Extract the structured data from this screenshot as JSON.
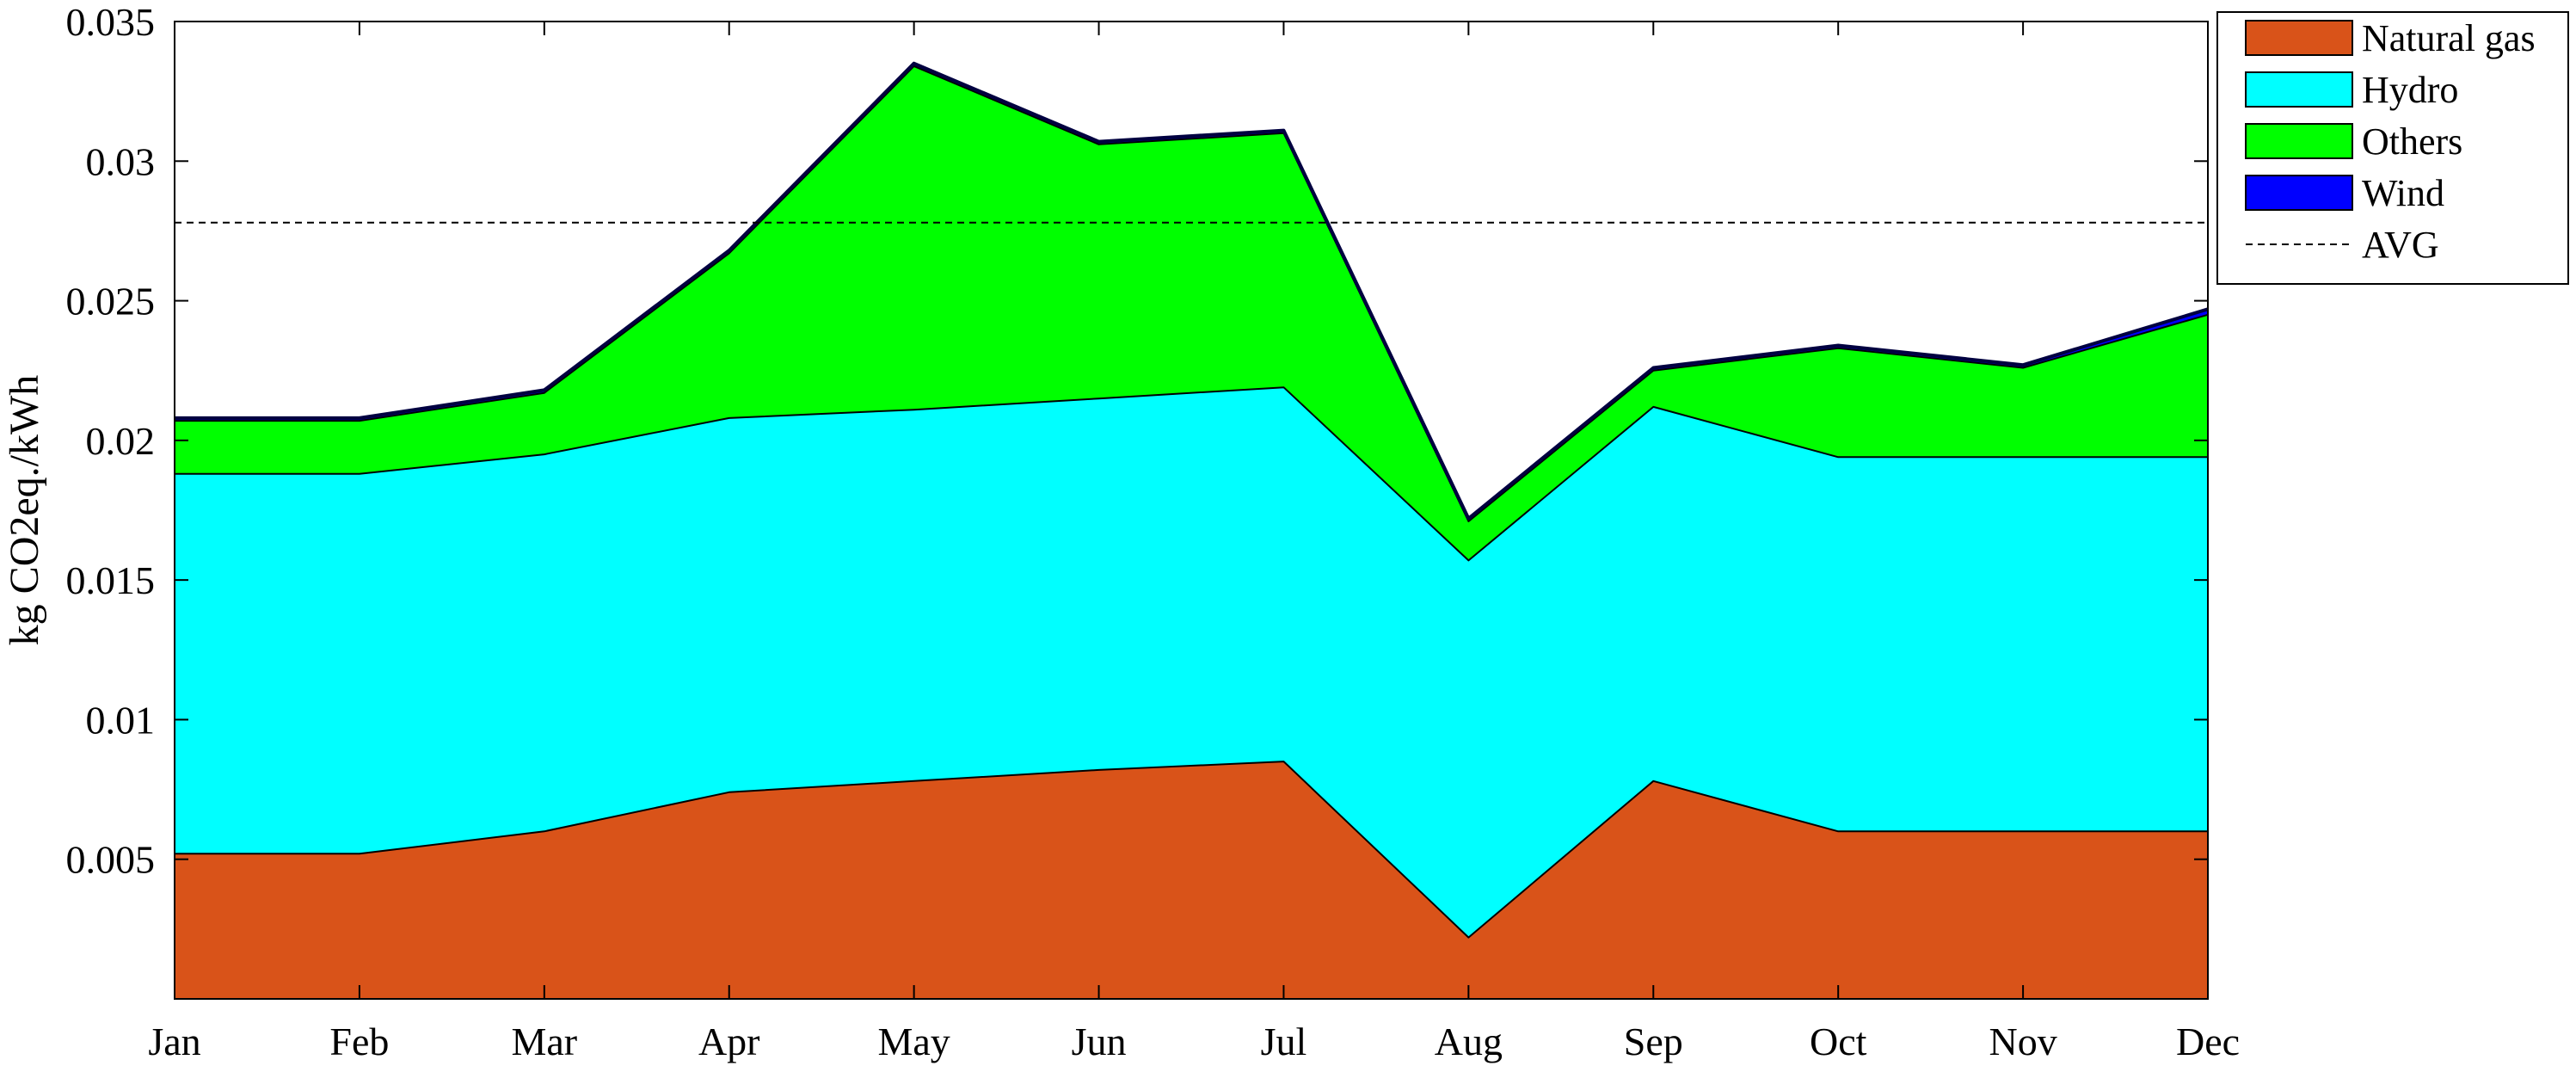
{
  "chart_data": {
    "type": "area",
    "stacked": true,
    "title": "",
    "xlabel": "",
    "ylabel": "kg CO2eq./kWh",
    "categories": [
      "Jan",
      "Feb",
      "Mar",
      "Apr",
      "May",
      "Jun",
      "Jul",
      "Aug",
      "Sep",
      "Oct",
      "Nov",
      "Dec"
    ],
    "ylim": [
      0,
      0.035
    ],
    "yticks": [
      0.005,
      0.01,
      0.015,
      0.02,
      0.025,
      0.03,
      0.035
    ],
    "ytick_labels": [
      "0.005",
      "0.01",
      "0.015",
      "0.02",
      "0.025",
      "0.03",
      "0.035"
    ],
    "grid": false,
    "legend_position": "outside-top-right",
    "series": [
      {
        "name": "Natural gas",
        "color": "#D95319",
        "values": [
          0.0052,
          0.0052,
          0.006,
          0.0074,
          0.0078,
          0.0082,
          0.0085,
          0.0022,
          0.0078,
          0.006,
          0.006,
          0.006
        ]
      },
      {
        "name": "Hydro",
        "color": "#00FFFF",
        "values": [
          0.0136,
          0.0136,
          0.0135,
          0.0134,
          0.0133,
          0.0133,
          0.0134,
          0.0135,
          0.0134,
          0.0134,
          0.0134,
          0.0134
        ]
      },
      {
        "name": "Others",
        "color": "#00FF00",
        "values": [
          0.0019,
          0.0019,
          0.0022,
          0.0059,
          0.0123,
          0.0091,
          0.0091,
          0.0014,
          0.0013,
          0.0039,
          0.0032,
          0.0051
        ]
      },
      {
        "name": "Wind",
        "color": "#0000FF",
        "values": [
          0.0001,
          0.0001,
          0.0001,
          0.0001,
          0.0001,
          0.0001,
          0.0001,
          0.0001,
          0.0001,
          0.0001,
          0.0001,
          0.0002
        ]
      }
    ],
    "reference_lines": [
      {
        "name": "AVG",
        "value": 0.0278,
        "style": "dashed",
        "color": "#000000"
      }
    ]
  }
}
